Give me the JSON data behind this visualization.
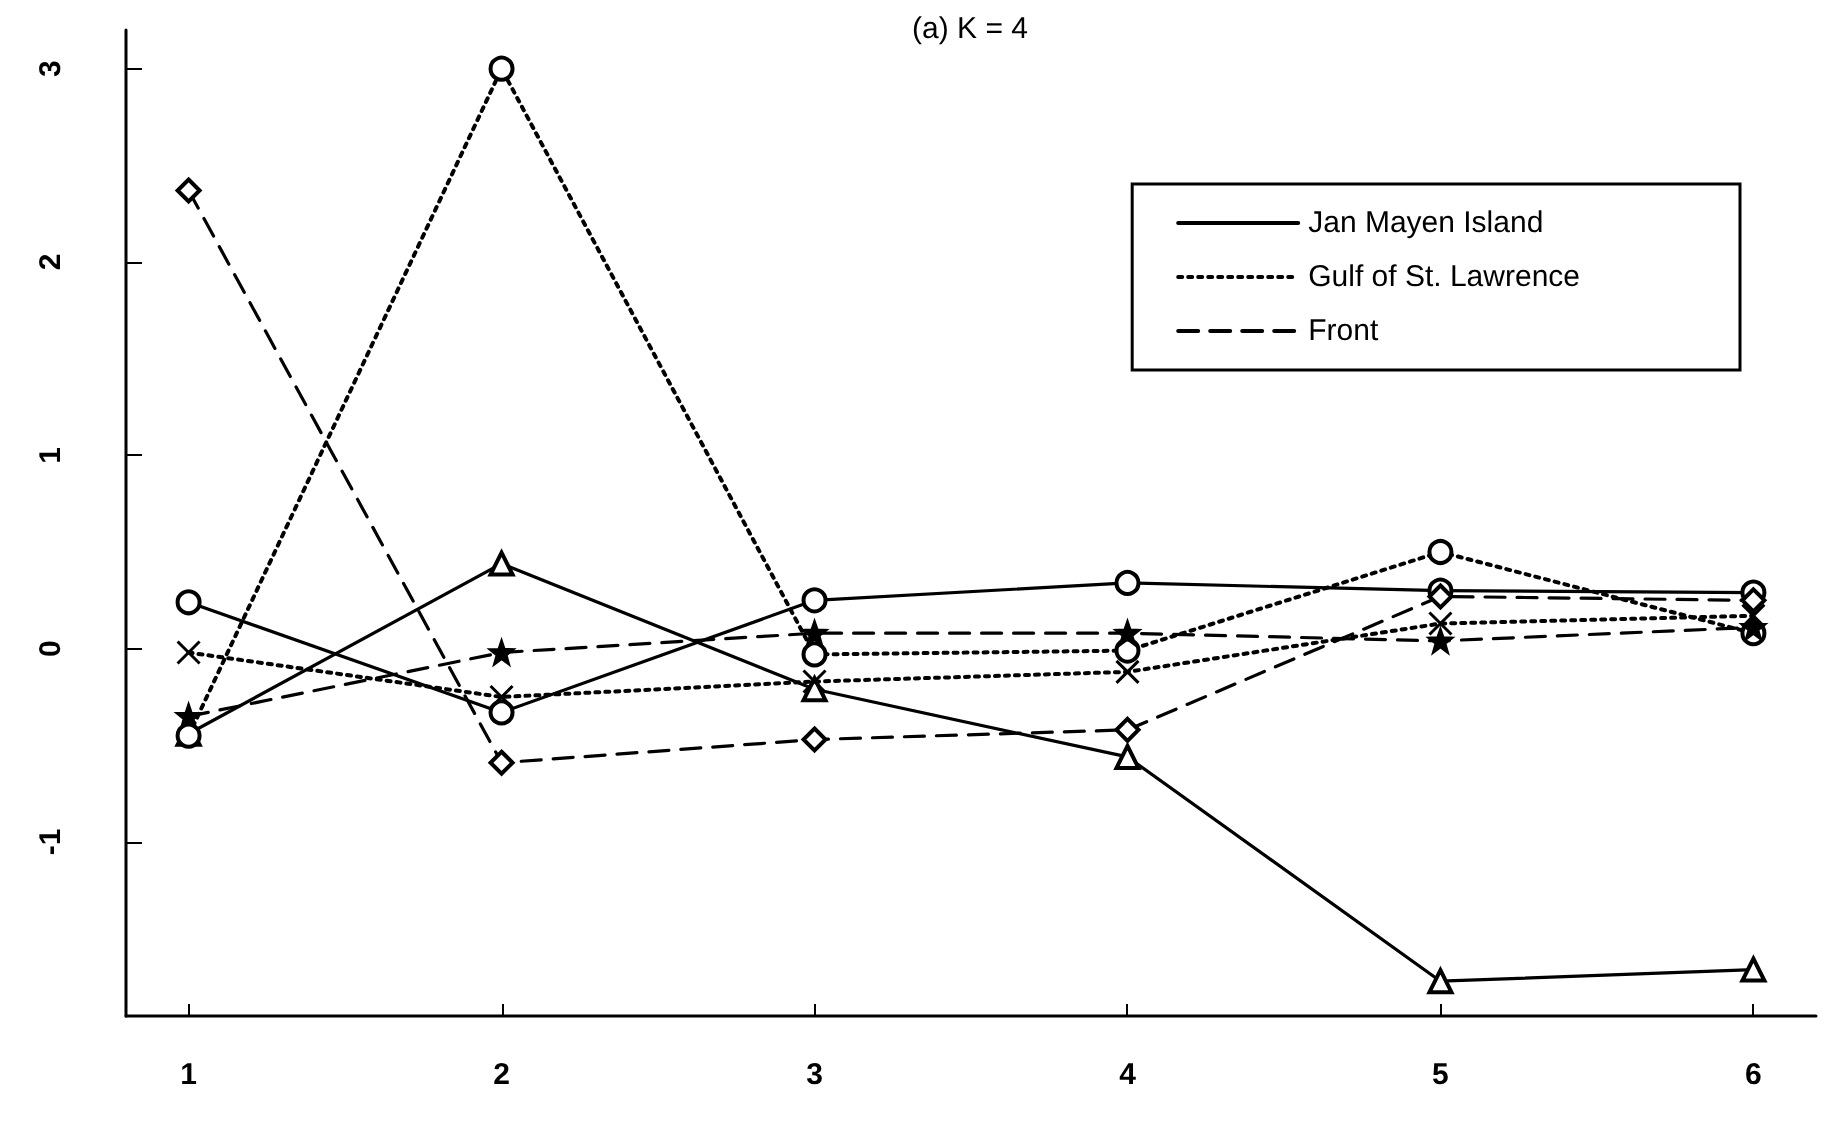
{
  "chart_data": {
    "type": "line",
    "title": "(a) K = 4",
    "x": [
      1,
      2,
      3,
      4,
      5,
      6
    ],
    "series": [
      {
        "name": "Jan Mayen Island",
        "color": "#000000",
        "line_style": "solid",
        "marker": "circle",
        "values": [
          0.24,
          -0.33,
          0.25,
          0.34,
          0.3,
          0.29
        ]
      },
      {
        "color": "#000000",
        "line_style": "solid",
        "marker": "triangle",
        "values": [
          -0.44,
          0.44,
          -0.21,
          -0.56,
          -1.72,
          -1.66
        ]
      },
      {
        "name": "Gulf of St. Lawrence",
        "color": "#000000",
        "line_style": "dotted",
        "marker": "circle",
        "values": [
          -0.45,
          3.0,
          -0.03,
          -0.01,
          0.5,
          0.08
        ]
      },
      {
        "color": "#000000",
        "line_style": "dotted",
        "marker": "cross",
        "values": [
          -0.02,
          -0.25,
          -0.17,
          -0.12,
          0.13,
          0.17
        ]
      },
      {
        "name": "Front",
        "color": "#000000",
        "line_style": "dashed",
        "marker": "star",
        "values": [
          -0.35,
          -0.02,
          0.08,
          0.08,
          0.04,
          0.11
        ]
      },
      {
        "color": "#000000",
        "line_style": "dashed",
        "marker": "diamond",
        "values": [
          2.37,
          -0.59,
          -0.47,
          -0.42,
          0.27,
          0.25
        ]
      }
    ],
    "xlim": [
      0.8,
      6.2
    ],
    "ylim": [
      -1.9,
      3.2
    ],
    "xticks": [
      1,
      2,
      3,
      4,
      5,
      6
    ],
    "yticks": [
      -1,
      0,
      1,
      2,
      3
    ],
    "grid": false,
    "legend": "top right"
  }
}
